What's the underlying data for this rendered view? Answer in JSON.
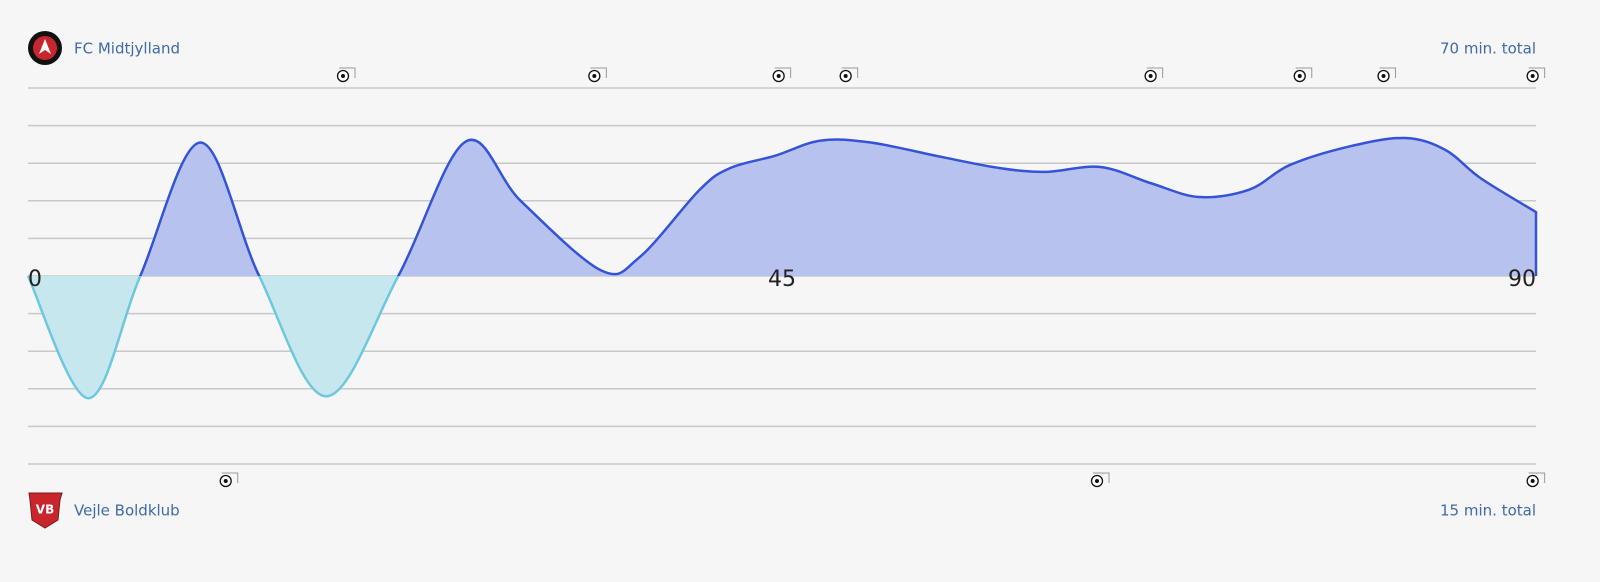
{
  "chart_data": {
    "type": "area",
    "home": {
      "name": "FC Midtjylland",
      "total": "70 min. total",
      "goals": [
        18.8,
        33.8,
        44.8,
        48.8,
        67,
        75.9,
        80.9,
        89.8
      ]
    },
    "away": {
      "name": "Vejle Boldklub",
      "total": "15 min. total",
      "goals": [
        11.8,
        63.8,
        89.8
      ]
    },
    "x": [
      0,
      3.6,
      6.7,
      10.3,
      13.8,
      17.8,
      22.1,
      26.1,
      29.4,
      34.2,
      36.5,
      40.1,
      41.9,
      44.6,
      47.3,
      50.3,
      54.7,
      58,
      60.7,
      64,
      67,
      69.9,
      72.9,
      75.3,
      78.9,
      82.2,
      84.6,
      86.7,
      90
    ],
    "values": [
      0,
      -3.25,
      0,
      3.55,
      0,
      -3.2,
      0,
      3.57,
      2.0,
      0.15,
      0.5,
      2.3,
      2.87,
      3.2,
      3.6,
      3.55,
      3.15,
      2.87,
      2.77,
      2.9,
      2.47,
      2.1,
      2.3,
      2.95,
      3.45,
      3.67,
      3.35,
      2.6,
      1.7
    ],
    "positive_color": "#3553d6",
    "positive_fill": "#b7c2ef",
    "negative_color": "#6cc8de",
    "negative_fill": "#c7e7ee",
    "xlim": [
      0,
      90
    ],
    "xticks": [
      0,
      45,
      90
    ],
    "ylim": [
      -5,
      5
    ],
    "grid_lines": [
      -5,
      -4,
      -3,
      -2,
      -1,
      0,
      1,
      2,
      3,
      4,
      5
    ]
  }
}
